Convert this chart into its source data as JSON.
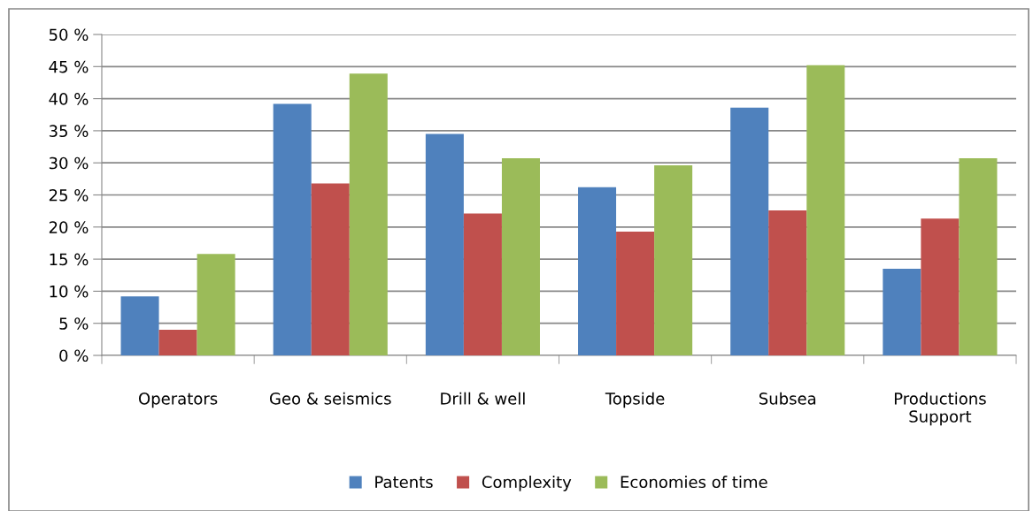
{
  "chart_data": {
    "type": "bar",
    "categories": [
      "Operators",
      "Geo & seismics",
      "Drill & well",
      "Topside",
      "Subsea",
      "Productions\nSupport"
    ],
    "series": [
      {
        "name": "Patents",
        "color": "#4f81bd",
        "values": [
          9.2,
          39.2,
          34.5,
          26.2,
          38.6,
          13.5
        ]
      },
      {
        "name": "Complexity",
        "color": "#c0504d",
        "values": [
          4.0,
          26.8,
          22.1,
          19.3,
          22.6,
          21.3
        ]
      },
      {
        "name": "Economies of time",
        "color": "#9bbb59",
        "values": [
          15.8,
          43.9,
          30.7,
          29.6,
          45.2,
          30.7
        ]
      }
    ],
    "ylim": [
      0,
      50
    ],
    "yticks": [
      {
        "value": 0,
        "label": "0 %"
      },
      {
        "value": 5,
        "label": "5 %"
      },
      {
        "value": 10,
        "label": "10 %"
      },
      {
        "value": 15,
        "label": "15 %"
      },
      {
        "value": 20,
        "label": "20 %"
      },
      {
        "value": 25,
        "label": "25 %"
      },
      {
        "value": 30,
        "label": "30 %"
      },
      {
        "value": 35,
        "label": "35 %"
      },
      {
        "value": 40,
        "label": "40 %"
      },
      {
        "value": 45,
        "label": "45 %"
      },
      {
        "value": 50,
        "label": "50 %"
      }
    ],
    "grid": "y",
    "legend": "bottom"
  }
}
